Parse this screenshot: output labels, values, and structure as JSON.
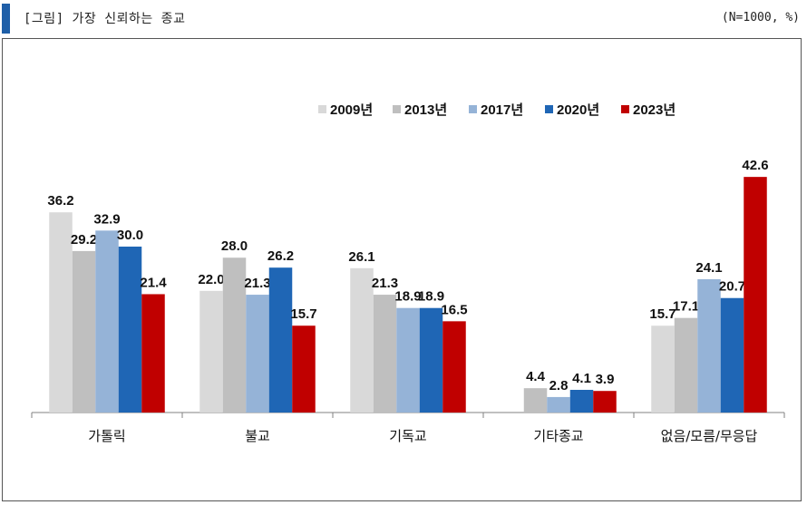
{
  "header": {
    "title": "[그림] 가장 신뢰하는 종교",
    "unit": "(N=1000, %)"
  },
  "chart_data": {
    "type": "bar",
    "categories": [
      "가톨릭",
      "불교",
      "기독교",
      "기타종교",
      "없음/모름/무응답"
    ],
    "series": [
      {
        "name": "2009년",
        "color": "#d9d9d9",
        "values": [
          36.2,
          22.0,
          26.1,
          null,
          15.7
        ]
      },
      {
        "name": "2013년",
        "color": "#bfbfbf",
        "values": [
          29.2,
          28.0,
          21.3,
          4.4,
          17.1
        ]
      },
      {
        "name": "2017년",
        "color": "#95b3d7",
        "values": [
          32.9,
          21.3,
          18.9,
          2.8,
          24.1
        ]
      },
      {
        "name": "2020년",
        "color": "#1f66b5",
        "values": [
          30.0,
          26.2,
          18.9,
          4.1,
          20.7
        ]
      },
      {
        "name": "2023년",
        "color": "#c00000",
        "values": [
          21.4,
          15.7,
          16.5,
          3.9,
          42.6
        ]
      }
    ],
    "ylim": [
      0,
      50
    ],
    "legend": "top-right",
    "grid": false
  }
}
